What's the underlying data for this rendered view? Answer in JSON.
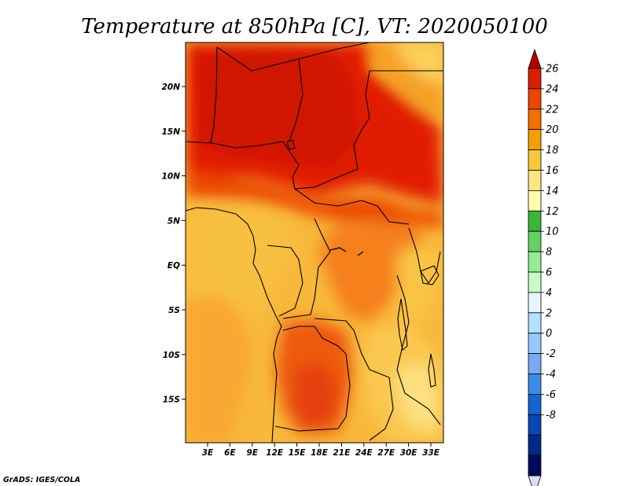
{
  "title": "Temperature at 850hPa [C], VT: 2020050100",
  "credit": "GrADS: IGES/COLA",
  "map": {
    "region": "Central Africa",
    "lon_labels": [
      "3E",
      "6E",
      "9E",
      "12E",
      "15E",
      "18E",
      "21E",
      "24E",
      "27E",
      "30E",
      "33E"
    ],
    "lat_labels": [
      "20N",
      "15N",
      "10N",
      "5N",
      "EQ",
      "5S",
      "10S",
      "15S"
    ]
  },
  "colorbar": {
    "labels": [
      "26",
      "24",
      "22",
      "20",
      "18",
      "16",
      "14",
      "12",
      "10",
      "8",
      "6",
      "4",
      "2",
      "0",
      "-2",
      "-4",
      "-6",
      "-8"
    ],
    "colors": [
      "#b40000",
      "#dc1e00",
      "#eb4600",
      "#f56e00",
      "#f5a000",
      "#fac83c",
      "#fde682",
      "#fefeb0",
      "#3ab53a",
      "#64d264",
      "#96eb96",
      "#c8fac8",
      "#e6f5ff",
      "#b4e1ff",
      "#96c8ff",
      "#78aaf5",
      "#3c8ce6",
      "#1464d2",
      "#0a46b4",
      "#00288c",
      "#000a5a",
      "#dcdcf5"
    ]
  },
  "legend_extremes": {
    "top": "26",
    "bottom": "-8"
  }
}
